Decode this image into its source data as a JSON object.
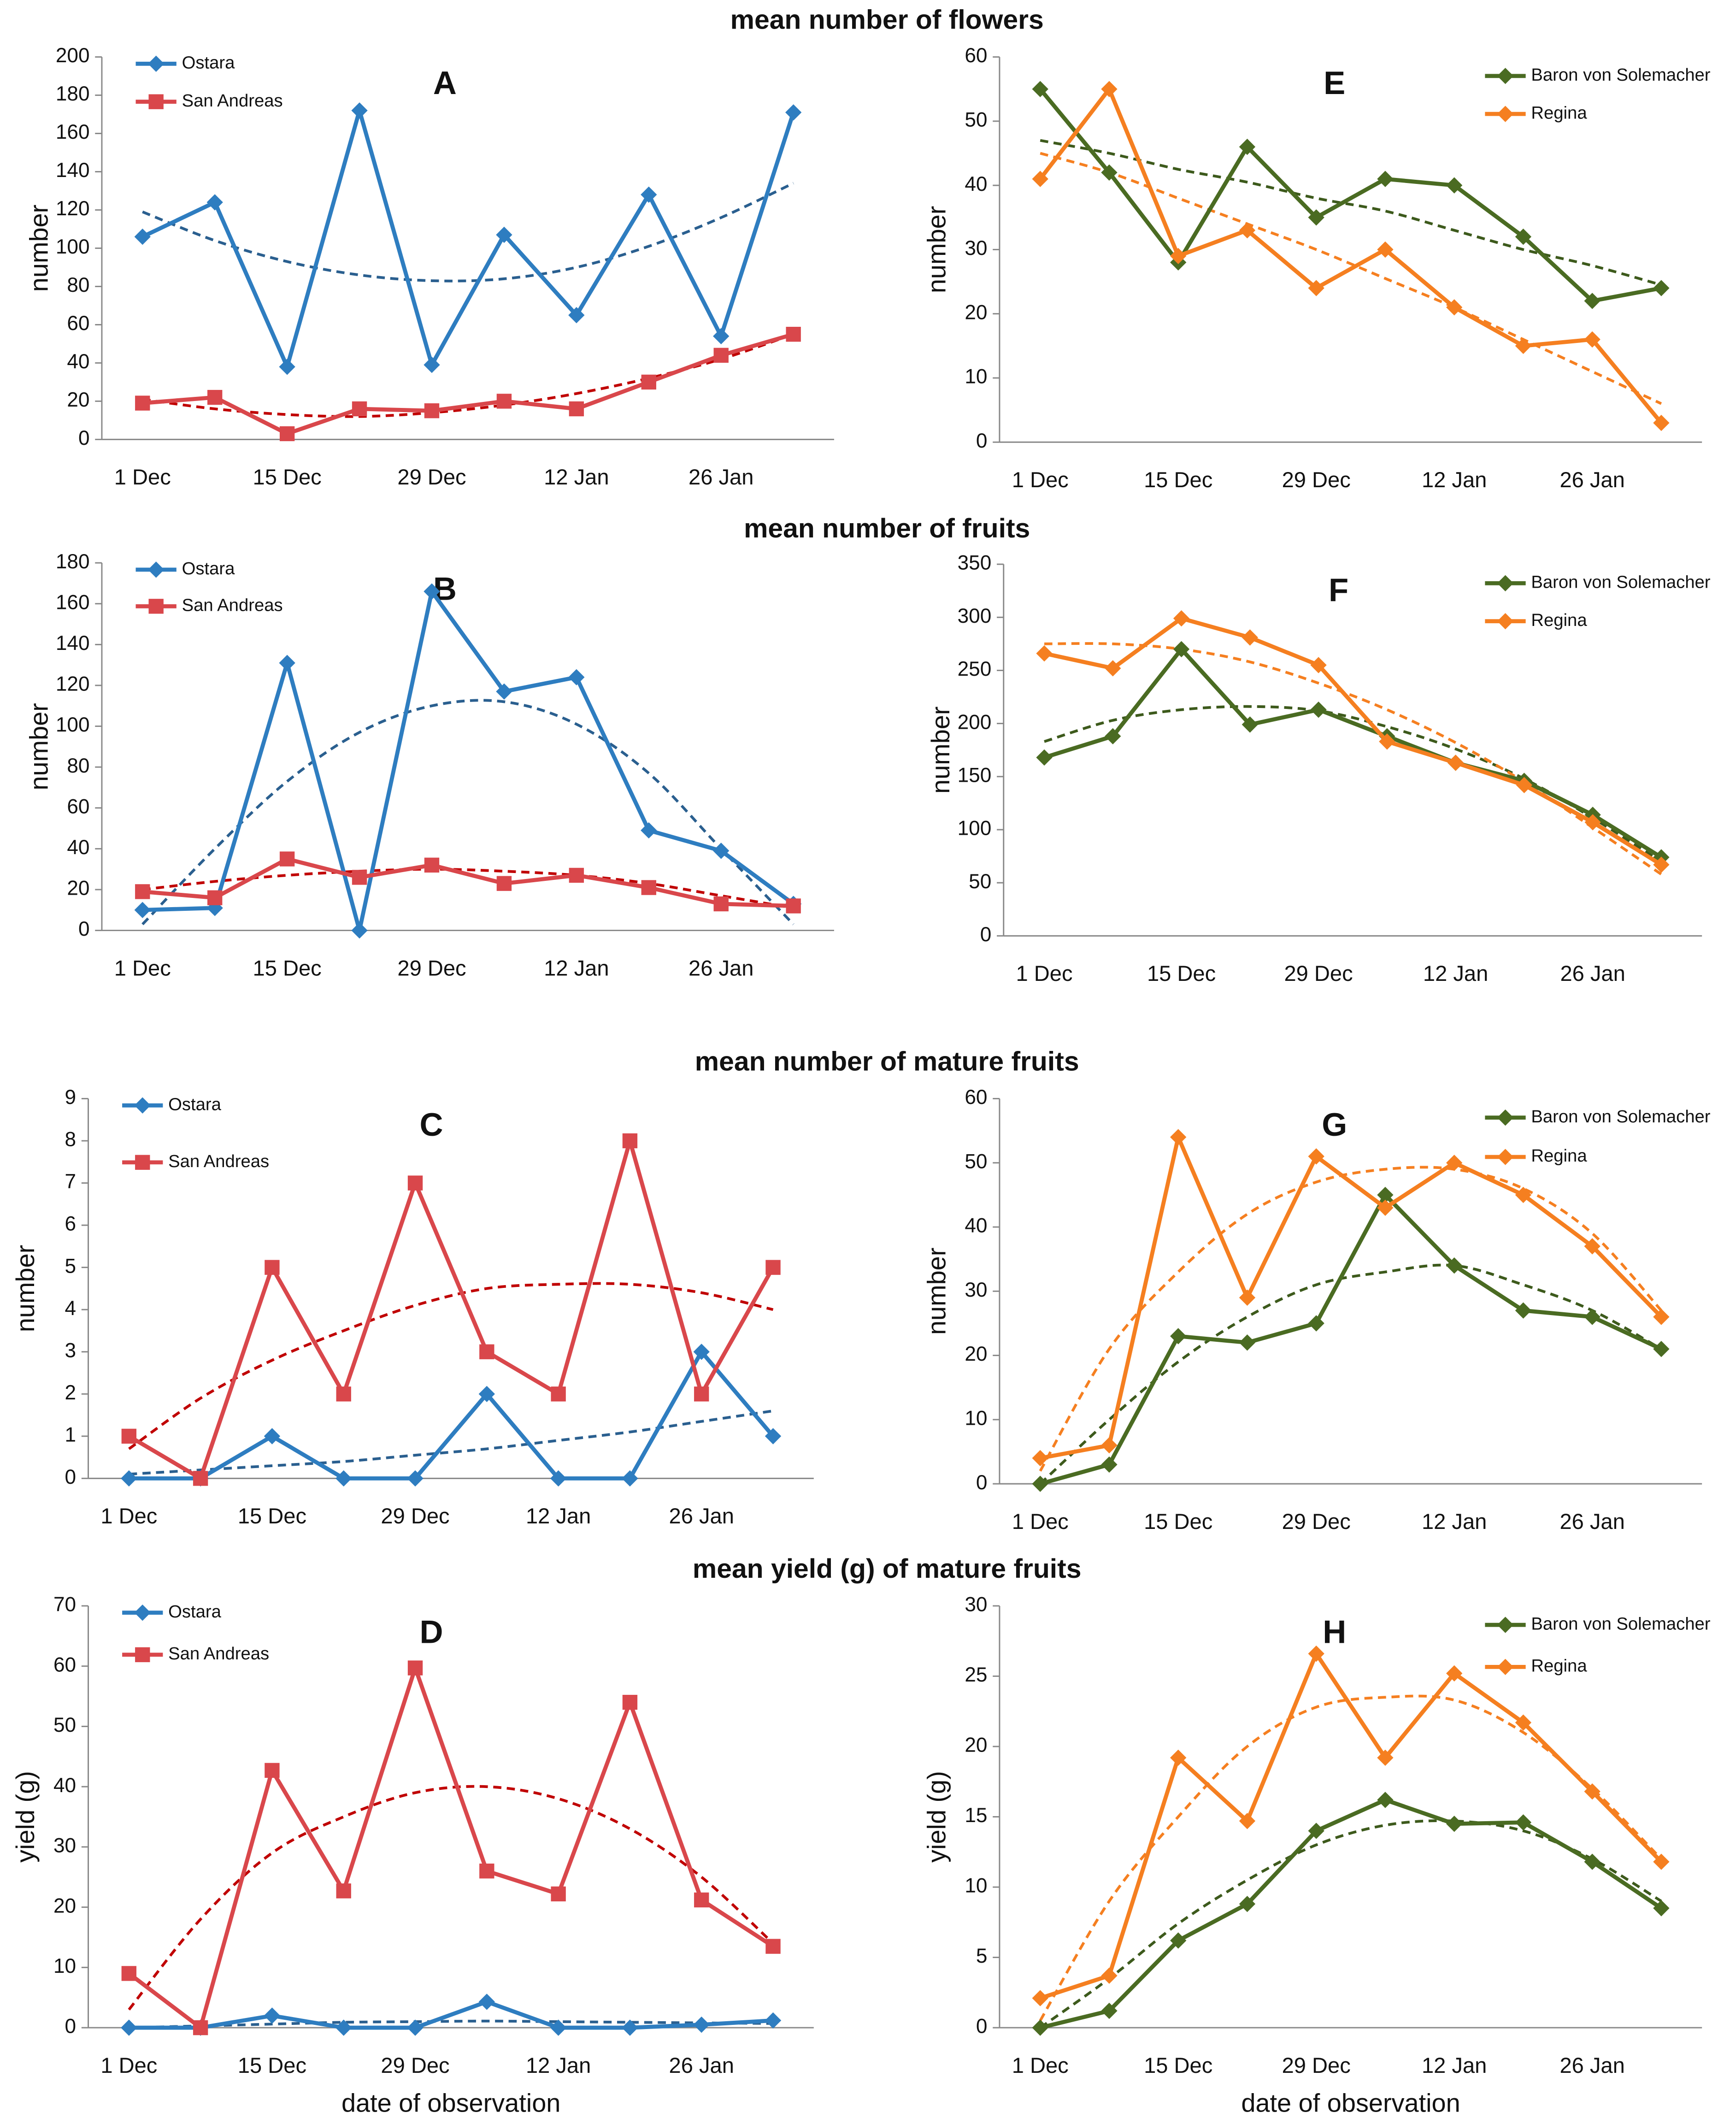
{
  "headings": [
    "mean number of flowers",
    "mean number of fruits",
    "mean number of mature fruits",
    "mean yield (g) of mature fruits"
  ],
  "chart_data": [
    {
      "type": "line",
      "title": "A",
      "ylabel": "number",
      "categories": [
        "1 Dec",
        null,
        "15 Dec",
        null,
        "29 Dec",
        null,
        "12 Jan",
        null,
        "26 Jan",
        null
      ],
      "series": [
        {
          "name": "Ostara",
          "color": "#2e7dc0",
          "marker": "diamond",
          "trend_color": "#2a5f8f",
          "values": [
            106,
            124,
            38,
            172,
            39,
            107,
            65,
            128,
            54,
            171
          ],
          "trend": [
            119,
            104,
            93,
            86,
            83,
            84,
            90,
            101,
            116,
            134
          ]
        },
        {
          "name": "San Andreas",
          "color": "#d9474b",
          "marker": "square",
          "trend_color": "#c00000",
          "values": [
            19,
            22,
            3,
            16,
            15,
            20,
            16,
            30,
            44,
            55
          ],
          "trend": [
            21,
            16,
            13,
            12,
            14,
            18,
            24,
            32,
            42,
            55
          ]
        }
      ],
      "ylim": [
        0,
        200
      ],
      "yticks": [
        0,
        20,
        40,
        60,
        80,
        100,
        120,
        140,
        160,
        180,
        200
      ],
      "legend": "upper left"
    },
    {
      "type": "line",
      "title": "E",
      "ylabel": "number",
      "categories": [
        "1 Dec",
        null,
        "15 Dec",
        null,
        "29 Dec",
        null,
        "12 Jan",
        null,
        "26 Jan",
        null
      ],
      "series": [
        {
          "name": "Baron von Solemacher",
          "color": "#4a6b22",
          "marker": "diamond",
          "trend_color": "#3d5a1c",
          "values": [
            55,
            42,
            28,
            46,
            35,
            41,
            40,
            32,
            22,
            24
          ],
          "trend": [
            47,
            45,
            42.5,
            40.5,
            38,
            36,
            33,
            30,
            27.5,
            24.5
          ]
        },
        {
          "name": "Regina",
          "color": "#f57f20",
          "marker": "diamond",
          "trend_color": "#f57f20",
          "values": [
            41,
            55,
            29,
            33,
            24,
            30,
            21,
            15,
            16,
            3
          ],
          "trend": [
            45,
            42,
            38,
            34,
            30,
            25.5,
            21,
            16,
            11,
            6
          ]
        }
      ],
      "ylim": [
        0,
        60
      ],
      "yticks": [
        0,
        10,
        20,
        30,
        40,
        50,
        60
      ],
      "legend": "upper right"
    },
    {
      "type": "line",
      "title": "B",
      "ylabel": "number",
      "categories": [
        "1 Dec",
        null,
        "15 Dec",
        null,
        "29 Dec",
        null,
        "12 Jan",
        null,
        "26 Jan",
        null
      ],
      "series": [
        {
          "name": "Ostara",
          "color": "#2e7dc0",
          "marker": "diamond",
          "trend_color": "#2a5f8f",
          "values": [
            10,
            11,
            131,
            0,
            166,
            117,
            124,
            49,
            39,
            13
          ],
          "trend": [
            3,
            40,
            73,
            97,
            110,
            112,
            101,
            77,
            40,
            3
          ]
        },
        {
          "name": "San Andreas",
          "color": "#d9474b",
          "marker": "square",
          "trend_color": "#c00000",
          "values": [
            19,
            16,
            35,
            26,
            32,
            23,
            27,
            21,
            13,
            12
          ],
          "trend": [
            20,
            24,
            27,
            29,
            30,
            29,
            27,
            23,
            17,
            11
          ]
        }
      ],
      "ylim": [
        0,
        180
      ],
      "yticks": [
        0,
        20,
        40,
        60,
        80,
        100,
        120,
        140,
        160,
        180
      ],
      "legend": "upper left"
    },
    {
      "type": "line",
      "title": "F",
      "ylabel": "number",
      "categories": [
        "1 Dec",
        null,
        "15 Dec",
        null,
        "29 Dec",
        null,
        "12 Jan",
        null,
        "26 Jan",
        null
      ],
      "series": [
        {
          "name": "Baron von Solemacher",
          "color": "#4a6b22",
          "marker": "diamond",
          "trend_color": "#3d5a1c",
          "values": [
            168,
            188,
            270,
            199,
            213,
            188,
            163,
            146,
            114,
            74
          ],
          "trend": [
            183,
            203,
            213,
            216,
            212,
            197,
            176,
            148,
            111,
            70
          ]
        },
        {
          "name": "Regina",
          "color": "#f57f20",
          "marker": "diamond",
          "trend_color": "#f57f20",
          "values": [
            266,
            252,
            299,
            281,
            255,
            183,
            163,
            142,
            107,
            67
          ],
          "trend": [
            275,
            275,
            270,
            258,
            238,
            213,
            182,
            145,
            102,
            58
          ]
        }
      ],
      "ylim": [
        0,
        350
      ],
      "yticks": [
        0,
        50,
        100,
        150,
        200,
        250,
        300,
        350
      ],
      "legend": "upper right"
    },
    {
      "type": "line",
      "title": "C",
      "ylabel": "number",
      "categories": [
        "1 Dec",
        null,
        "15 Dec",
        null,
        "29 Dec",
        null,
        "12 Jan",
        null,
        "26 Jan",
        null
      ],
      "series": [
        {
          "name": "Ostara",
          "color": "#2e7dc0",
          "marker": "diamond",
          "trend_color": "#2a5f8f",
          "values": [
            0,
            0,
            1,
            0,
            0,
            2,
            0,
            0,
            3,
            1
          ],
          "trend": [
            0.1,
            0.2,
            0.3,
            0.4,
            0.55,
            0.7,
            0.9,
            1.1,
            1.35,
            1.6
          ]
        },
        {
          "name": "San Andreas",
          "color": "#d9474b",
          "marker": "square",
          "trend_color": "#c00000",
          "values": [
            1,
            0,
            5,
            2,
            7,
            3,
            2,
            8,
            2,
            5
          ],
          "trend": [
            0.7,
            1.9,
            2.8,
            3.5,
            4.1,
            4.5,
            4.6,
            4.6,
            4.4,
            4.0
          ]
        }
      ],
      "ylim": [
        0,
        9
      ],
      "yticks": [
        0,
        1,
        2,
        3,
        4,
        5,
        6,
        7,
        8,
        9
      ],
      "legend": "upper left"
    },
    {
      "type": "line",
      "title": "G",
      "ylabel": "number",
      "categories": [
        "1 Dec",
        null,
        "15 Dec",
        null,
        "29 Dec",
        null,
        "12 Jan",
        null,
        "26 Jan",
        null
      ],
      "series": [
        {
          "name": "Baron von Solemacher",
          "color": "#4a6b22",
          "marker": "diamond",
          "trend_color": "#3d5a1c",
          "values": [
            0,
            3,
            23,
            22,
            25,
            45,
            34,
            27,
            26,
            21
          ],
          "trend": [
            0,
            10,
            19,
            26,
            31,
            33,
            34,
            31,
            27,
            21
          ]
        },
        {
          "name": "Regina",
          "color": "#f57f20",
          "marker": "diamond",
          "trend_color": "#f57f20",
          "values": [
            4,
            6,
            54,
            29,
            51,
            43,
            50,
            45,
            37,
            26
          ],
          "trend": [
            2,
            21,
            33,
            42,
            47,
            49,
            49,
            46,
            39,
            27
          ]
        }
      ],
      "ylim": [
        0,
        60
      ],
      "yticks": [
        0,
        10,
        20,
        30,
        40,
        50,
        60
      ],
      "legend": "upper right"
    },
    {
      "type": "line",
      "title": "D",
      "ylabel": "yield (g)",
      "xlabel": "date of observation",
      "categories": [
        "1 Dec",
        null,
        "15 Dec",
        null,
        "29 Dec",
        null,
        "12 Jan",
        null,
        "26 Jan",
        null
      ],
      "series": [
        {
          "name": "Ostara",
          "color": "#2e7dc0",
          "marker": "diamond",
          "trend_color": "#2a5f8f",
          "values": [
            0,
            0,
            2,
            0,
            0,
            4.3,
            0,
            0,
            0.5,
            1.2
          ],
          "trend": [
            0,
            0.3,
            0.6,
            0.9,
            1,
            1.1,
            1,
            0.9,
            0.8,
            0.7
          ]
        },
        {
          "name": "San Andreas",
          "color": "#d9474b",
          "marker": "square",
          "trend_color": "#c00000",
          "values": [
            9,
            0,
            42.7,
            22.7,
            59.7,
            26,
            22.2,
            54,
            21.2,
            13.5
          ],
          "trend": [
            3,
            18,
            29,
            35,
            39,
            40,
            38,
            33,
            25,
            14
          ]
        }
      ],
      "ylim": [
        0,
        70
      ],
      "yticks": [
        0,
        10,
        20,
        30,
        40,
        50,
        60,
        70
      ],
      "legend": "upper left"
    },
    {
      "type": "line",
      "title": "H",
      "ylabel": "yield (g)",
      "xlabel": "date of observation",
      "categories": [
        "1 Dec",
        null,
        "15 Dec",
        null,
        "29 Dec",
        null,
        "12 Jan",
        null,
        "26 Jan",
        null
      ],
      "series": [
        {
          "name": "Baron von Solemacher",
          "color": "#4a6b22",
          "marker": "diamond",
          "trend_color": "#3d5a1c",
          "values": [
            0,
            1.2,
            6.2,
            8.8,
            14,
            16.2,
            14.5,
            14.6,
            11.8,
            8.5
          ],
          "trend": [
            0,
            3.5,
            7.4,
            10.5,
            13,
            14.4,
            14.7,
            14,
            12,
            9
          ]
        },
        {
          "name": "Regina",
          "color": "#f57f20",
          "marker": "diamond",
          "trend_color": "#f57f20",
          "values": [
            2.1,
            3.7,
            19.2,
            14.7,
            26.6,
            19.2,
            25.2,
            21.7,
            16.8,
            11.8
          ],
          "trend": [
            0.5,
            9,
            15,
            20,
            22.8,
            23.5,
            23.3,
            21,
            17,
            12
          ]
        }
      ],
      "ylim": [
        0,
        30
      ],
      "yticks": [
        0,
        5,
        10,
        15,
        20,
        25,
        30
      ],
      "legend": "upper right"
    }
  ]
}
